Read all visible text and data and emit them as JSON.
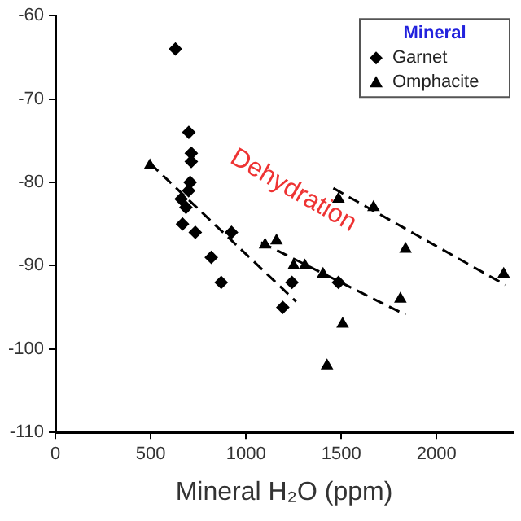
{
  "chart_data": {
    "type": "scatter",
    "xlabel": "Mineral H₂O (ppm)",
    "legend_title": "Mineral",
    "legend": "top right",
    "grid": false,
    "xlim": [
      0,
      2400
    ],
    "xticks": [
      0,
      500,
      1000,
      1500,
      2000
    ],
    "ylim": [
      -110,
      -60
    ],
    "yticks": [
      -110,
      -100,
      -90,
      -80,
      -70,
      -60
    ],
    "annotations": [
      "Dehydration"
    ],
    "series": [
      {
        "name": "Garnet",
        "type": "scatter",
        "marker": "diamond",
        "color": "#000000",
        "x": [
          630,
          700,
          713,
          713,
          707,
          699,
          660,
          685,
          667,
          734,
          924,
          818,
          870,
          1193,
          1241,
          1485
        ],
        "values": [
          -64,
          -74,
          -76.5,
          -77.5,
          -80,
          -81,
          -82,
          -83,
          -85,
          -86,
          -86,
          -89,
          -92,
          -95,
          -92,
          -92
        ]
      },
      {
        "name": "Omphacite",
        "type": "scatter",
        "marker": "triangle",
        "color": "#000000",
        "x": [
          496,
          1485,
          1669,
          1837,
          1160,
          1100,
          1250,
          1309,
          1404,
          1810,
          1507,
          1425,
          2352
        ],
        "values": [
          -78,
          -82,
          -83,
          -88,
          -87,
          -87.5,
          -90,
          -90,
          -91,
          -94,
          -97,
          -102,
          -91
        ]
      },
      {
        "type": "line",
        "marker": "none",
        "line_style": "dashed",
        "color": "#000000",
        "x": [
          496,
          1263
        ],
        "values": [
          -77.7,
          -94.3
        ]
      },
      {
        "type": "line",
        "marker": "none",
        "line_style": "dashed",
        "color": "#000000",
        "x": [
          1079,
          1837
        ],
        "values": [
          -87.2,
          -95.9
        ]
      },
      {
        "type": "line",
        "marker": "none",
        "line_style": "dashed",
        "color": "#000000",
        "x": [
          1458,
          2360
        ],
        "values": [
          -80.7,
          -92.3
        ]
      }
    ]
  }
}
